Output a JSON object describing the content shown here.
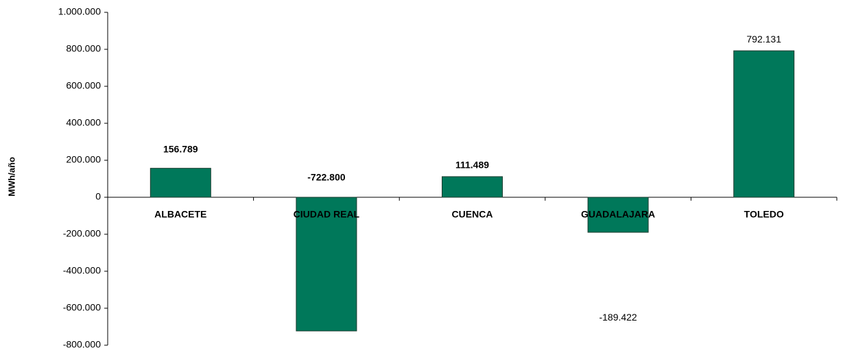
{
  "chart_data": {
    "type": "bar",
    "y_label": "MWh/año",
    "categories": [
      "ALBACETE",
      "CIUDAD REAL",
      "CUENCA",
      "GUADALAJARA",
      "TOLEDO"
    ],
    "values": [
      156789,
      -722800,
      111489,
      -189422,
      792131
    ],
    "value_labels": [
      "156.789",
      "-722.800",
      "111.489",
      "-189.422",
      "792.131"
    ],
    "color": "#00785a",
    "ylim": [
      -800000,
      1000000
    ],
    "yticks": [
      {
        "value": -800000,
        "label": "-800.000"
      },
      {
        "value": -600000,
        "label": "-600.000"
      },
      {
        "value": -400000,
        "label": "-400.000"
      },
      {
        "value": -200000,
        "label": "-200.000"
      },
      0,
      {
        "value": 200000,
        "label": "200.000"
      },
      {
        "value": 400000,
        "label": "400.000"
      },
      {
        "value": 600000,
        "label": "600.000"
      },
      {
        "value": 800000,
        "label": "800.000"
      },
      {
        "value": 1000000,
        "label": "1.000.000"
      }
    ]
  }
}
